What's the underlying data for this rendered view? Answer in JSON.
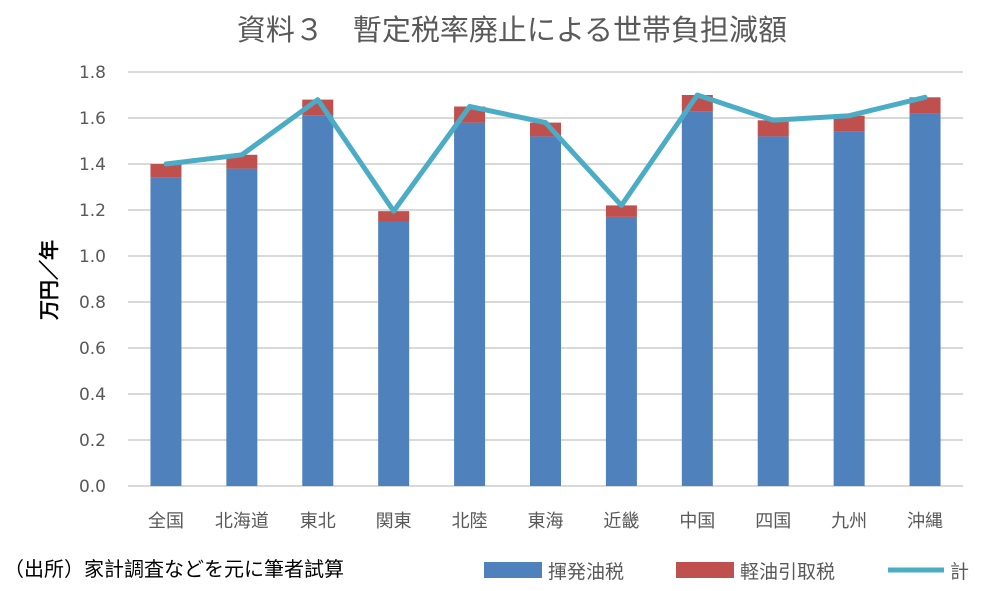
{
  "chart_data": {
    "type": "bar",
    "stacked": true,
    "title": "資料３　暫定税率廃止による世帯負担減額",
    "xlabel": "",
    "ylabel": "万円／年",
    "ylim": [
      0,
      1.8
    ],
    "yticks": [
      "0.0",
      "0.2",
      "0.4",
      "0.6",
      "0.8",
      "1.0",
      "1.2",
      "1.4",
      "1.6",
      "1.8"
    ],
    "grid": true,
    "legend_position": "bottom-right",
    "categories": [
      "全国",
      "北海道",
      "東北",
      "関東",
      "北陸",
      "東海",
      "近畿",
      "中国",
      "四国",
      "九州",
      "沖縄"
    ],
    "series": [
      {
        "name": "揮発油税",
        "kind": "bar",
        "color": "#4F81BD",
        "values": [
          1.34,
          1.38,
          1.61,
          1.15,
          1.58,
          1.52,
          1.17,
          1.63,
          1.52,
          1.54,
          1.62
        ]
      },
      {
        "name": "軽油引取税",
        "kind": "bar",
        "color": "#C0504D",
        "values": [
          0.06,
          0.06,
          0.07,
          0.045,
          0.07,
          0.06,
          0.05,
          0.07,
          0.07,
          0.07,
          0.07
        ]
      },
      {
        "name": "計",
        "kind": "line",
        "color": "#4BACC6",
        "values": [
          1.4,
          1.44,
          1.68,
          1.195,
          1.65,
          1.58,
          1.22,
          1.7,
          1.59,
          1.61,
          1.69
        ]
      }
    ]
  },
  "source_note": "（出所）家計調査などを元に筆者試算"
}
